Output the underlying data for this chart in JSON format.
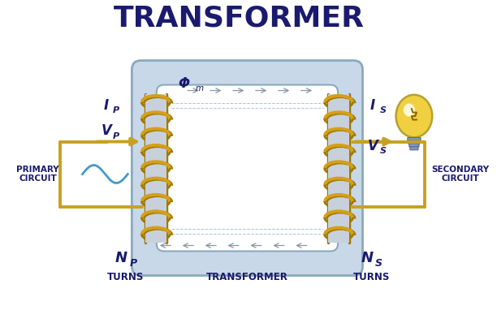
{
  "title": "TRANSFORMER",
  "title_fontsize": 26,
  "title_color": "#1a1a6e",
  "title_fontweight": "bold",
  "bg_color": "#ffffff",
  "core_color": "#c8d8e8",
  "core_border_color": "#8aaabb",
  "core_line_color": "#8aaabb",
  "coil_color": "#d4a017",
  "coil_shadow": "#a07800",
  "coil_inner_color": "#c8d0dc",
  "wire_color": "#c8a020",
  "flux_arrow_color": "#8899aa",
  "label_color": "#1a1a6e",
  "sine_color": "#4499cc",
  "secondary_label": "SECONDARY\nCIRCUIT",
  "primary_label": "PRIMARY\nCIRCUIT",
  "transformer_label": "TRANSFORMER",
  "np_label": "N",
  "np_sub": "P",
  "np_turns": "TURNS",
  "ns_label": "N",
  "ns_sub": "S",
  "ns_turns": "TURNS",
  "ip_label": "I",
  "ip_sub": "P",
  "vp_label": "V",
  "vp_sub": "P",
  "is_label": "I",
  "is_sub": "S",
  "vs_label": "V",
  "vs_sub": "S",
  "phi_label": "Φ",
  "phi_sub": "m",
  "bulb_color": "#f0d040",
  "bulb_edge": "#b8a030",
  "bulb_base_color": "#8899aa",
  "bulb_base_edge": "#5566aa"
}
